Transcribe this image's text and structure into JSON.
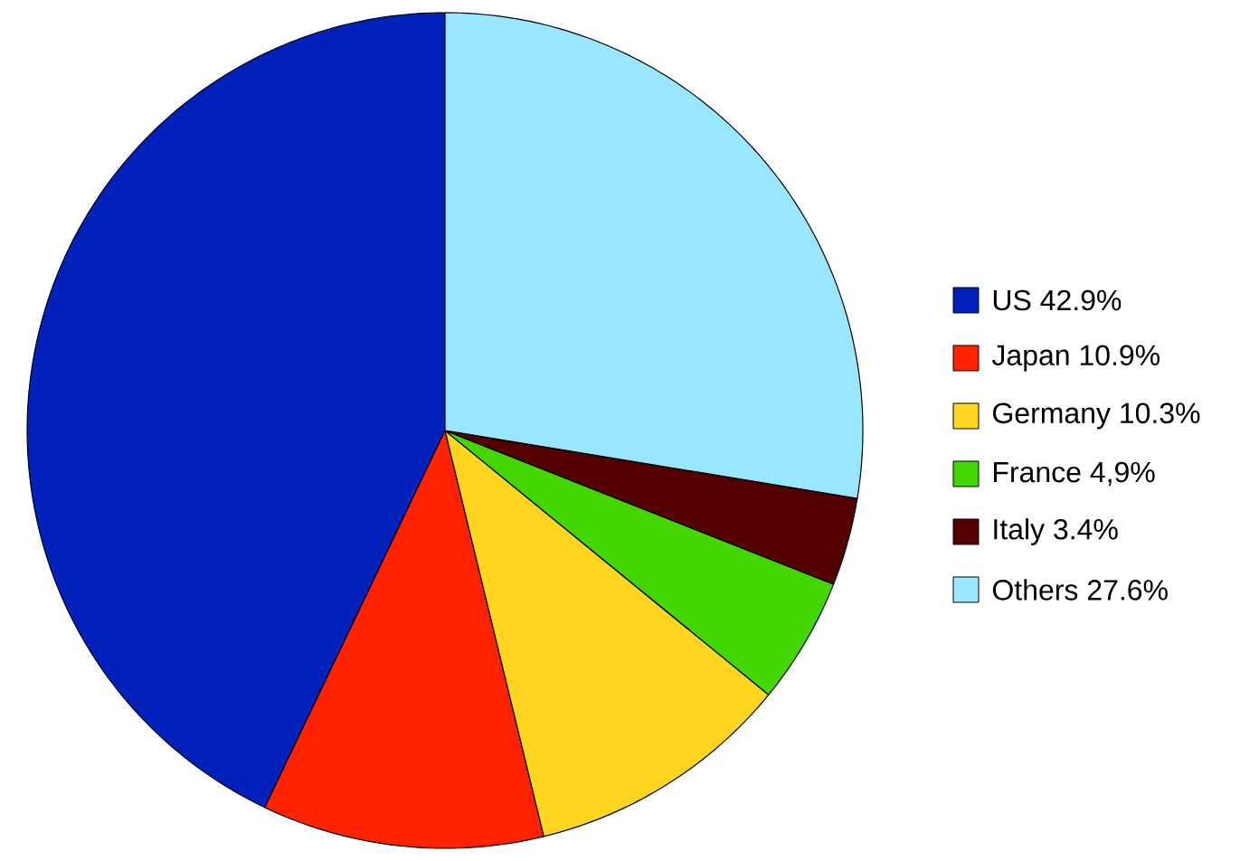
{
  "chart_data": {
    "type": "pie",
    "categories": [
      "US 42.9%",
      "Japan 10.9%",
      "Germany 10.3%",
      "France 4,9%",
      "Italy 3.4%",
      "Others 27.6%"
    ],
    "values": [
      42.9,
      10.9,
      10.3,
      4.9,
      3.4,
      27.6
    ],
    "colors": [
      "#0022bb",
      "#ff2200",
      "#ffd520",
      "#44d600",
      "#550000",
      "#99e6ff"
    ],
    "legend": "right"
  }
}
